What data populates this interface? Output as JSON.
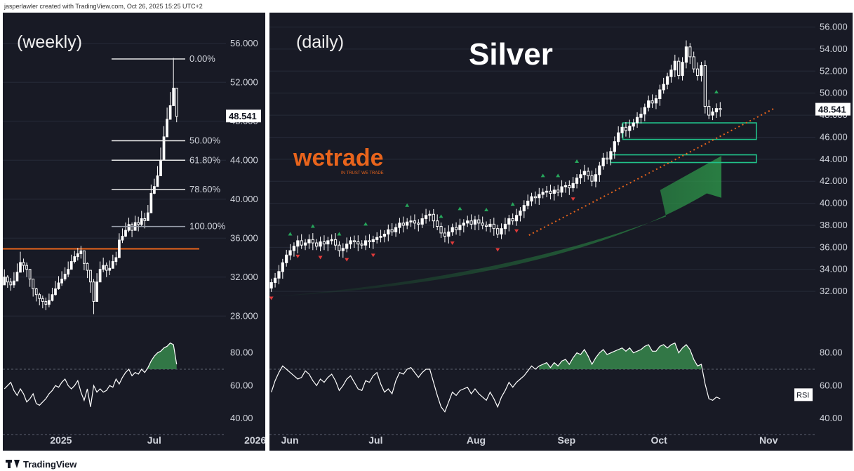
{
  "header": {
    "credit": "jasperlawler created with TradingView.com, Oct 26, 2025 15:25 UTC+2"
  },
  "footer": {
    "brand": "TradingView",
    "logo_icon": "tradingview-logo-icon"
  },
  "colors": {
    "background": "#181a25",
    "text": "#d1d4dc",
    "candle": "#ffffff",
    "support_line": "#e8641c",
    "trend_line": "#e8641c",
    "zone": "#21c28a",
    "rsi_fill": "#3a8f4f",
    "up_marker": "#26a65b",
    "down_marker": "#e03a3a",
    "arrow": "#1f6f35"
  },
  "chart_data": [
    {
      "type": "candlestick",
      "label": "(weekly)",
      "ylim": [
        26,
        58
      ],
      "y_ticks": [
        28,
        32,
        36,
        40,
        44,
        48,
        52,
        56
      ],
      "y_tick_labels": [
        "28.000",
        "32.000",
        "36.000",
        "40.000",
        "44.000",
        "48.000",
        "52.000",
        "56.000"
      ],
      "x_labels": [
        {
          "label": "2025",
          "pos": 0.18
        },
        {
          "label": "Jul",
          "pos": 0.55
        },
        {
          "label": "2026",
          "pos": 0.92
        }
      ],
      "close_series": [
        32.0,
        31.5,
        31.2,
        31.6,
        32.5,
        33.5,
        33.2,
        32.8,
        31.8,
        30.8,
        30.2,
        29.8,
        29.5,
        29.2,
        29.6,
        30.2,
        30.8,
        31.4,
        31.8,
        32.3,
        32.8,
        33.6,
        34.1,
        34.4,
        34.7,
        33.4,
        32.7,
        31.5,
        29.5,
        31.5,
        32.8,
        33.2,
        32.7,
        32.9,
        33.6,
        34.0,
        35.8,
        36.2,
        36.8,
        37.4,
        36.8,
        37.6,
        37.4,
        38.0,
        37.8,
        38.6,
        40.6,
        41.3,
        42.4,
        44.0,
        46.4,
        48.2,
        49.6,
        51.4,
        48.5
      ],
      "high_series": [
        32.8,
        32.2,
        31.9,
        32.5,
        33.4,
        34.6,
        33.9,
        33.5,
        32.5,
        31.5,
        30.9,
        30.4,
        30.1,
        29.9,
        30.3,
        30.9,
        31.6,
        32.1,
        32.6,
        33.0,
        33.6,
        34.3,
        34.7,
        35.0,
        35.2,
        34.4,
        33.5,
        32.4,
        31.8,
        32.4,
        33.6,
        34.0,
        33.5,
        33.7,
        34.3,
        34.6,
        36.5,
        37.0,
        37.6,
        38.1,
        37.6,
        38.3,
        38.2,
        38.8,
        38.6,
        39.4,
        41.5,
        42.1,
        43.4,
        45.3,
        47.5,
        49.4,
        51.0,
        54.5,
        50.2
      ],
      "low_series": [
        31.2,
        30.9,
        30.6,
        30.9,
        31.8,
        32.7,
        32.5,
        32.0,
        31.0,
        30.0,
        29.5,
        29.1,
        28.8,
        28.6,
        28.9,
        29.5,
        30.1,
        30.7,
        31.1,
        31.6,
        32.0,
        32.9,
        33.4,
        33.7,
        33.9,
        32.7,
        31.9,
        30.4,
        28.2,
        30.4,
        32.0,
        32.5,
        32.0,
        32.2,
        32.9,
        33.2,
        34.9,
        35.5,
        36.1,
        36.6,
        36.1,
        36.8,
        36.7,
        37.2,
        37.0,
        37.8,
        39.8,
        40.5,
        41.4,
        42.9,
        45.4,
        47.2,
        48.6,
        49.8,
        47.9
      ],
      "open_first": 31.2,
      "price_label": "48.541",
      "support_level": 34.9,
      "fibonacci": [
        {
          "label": "0.00%",
          "value": 54.4
        },
        {
          "label": "50.00%",
          "value": 46.0
        },
        {
          "label": "61.80%",
          "value": 44.0
        },
        {
          "label": "78.60%",
          "value": 41.0
        },
        {
          "label": "100.00%",
          "value": 37.2
        }
      ],
      "rsi": {
        "ylim": [
          34,
          88
        ],
        "ticks": [
          40,
          60,
          80
        ],
        "tick_labels": [
          "40.00",
          "60.00",
          "80.00"
        ],
        "levels": [
          70,
          30
        ],
        "values": [
          58,
          60,
          62,
          57,
          54,
          58,
          55,
          50,
          52,
          55,
          49,
          48,
          50,
          52,
          55,
          57,
          60,
          59,
          62,
          64,
          60,
          58,
          60,
          63,
          56,
          51,
          58,
          47,
          60,
          56,
          58,
          56,
          57,
          60,
          59,
          64,
          61,
          65,
          68,
          70,
          66,
          68,
          67,
          70,
          68,
          71,
          75,
          78,
          80,
          81,
          83,
          84,
          86,
          85,
          73
        ]
      }
    },
    {
      "type": "candlestick",
      "label": "(daily)",
      "title": "Silver",
      "ylim": [
        28.5,
        56.8
      ],
      "y_ticks": [
        32,
        34,
        36,
        38,
        40,
        42,
        44,
        46,
        48,
        50,
        52,
        54,
        56
      ],
      "y_tick_labels": [
        "32.000",
        "34.000",
        "36.000",
        "38.000",
        "40.000",
        "42.000",
        "44.000",
        "46.000",
        "48.000",
        "50.000",
        "52.000",
        "54.000",
        "56.000"
      ],
      "x_labels": [
        {
          "label": "Jun",
          "pos": 0.02
        },
        {
          "label": "Jul",
          "pos": 0.17
        },
        {
          "label": "Aug",
          "pos": 0.338
        },
        {
          "label": "Sep",
          "pos": 0.494
        },
        {
          "label": "Oct",
          "pos": 0.654
        },
        {
          "label": "Nov",
          "pos": 0.84
        }
      ],
      "close_series": [
        32.8,
        33.2,
        33.8,
        34.6,
        35.3,
        35.7,
        36.1,
        36.6,
        36.2,
        36.4,
        36.7,
        36.4,
        36.1,
        36.5,
        36.3,
        36.6,
        36.7,
        36.2,
        35.7,
        35.9,
        36.3,
        36.6,
        36.5,
        36.3,
        36.2,
        36.6,
        36.5,
        36.7,
        36.9,
        37.0,
        37.2,
        37.6,
        37.4,
        37.8,
        38.2,
        38.0,
        38.3,
        38.4,
        38.2,
        38.1,
        38.6,
        38.9,
        39.0,
        38.4,
        37.9,
        37.3,
        37.0,
        37.4,
        37.8,
        37.6,
        38.0,
        38.2,
        38.4,
        38.1,
        38.5,
        38.2,
        38.0,
        37.9,
        38.1,
        37.7,
        37.2,
        37.7,
        38.1,
        38.6,
        38.4,
        38.9,
        39.3,
        39.8,
        40.2,
        40.6,
        40.5,
        40.8,
        41.0,
        41.1,
        40.9,
        41.2,
        41.0,
        41.5,
        41.6,
        41.4,
        41.8,
        42.3,
        42.6,
        42.9,
        42.5,
        42.0,
        42.6,
        43.4,
        44.1,
        44.0,
        44.7,
        45.6,
        46.4,
        46.9,
        46.6,
        47.0,
        47.3,
        47.8,
        48.1,
        48.7,
        49.3,
        49.1,
        49.5,
        50.3,
        50.8,
        51.5,
        52.1,
        52.9,
        51.6,
        52.8,
        54.2,
        53.3,
        52.2,
        51.6,
        52.5,
        48.8,
        48.0,
        48.3,
        48.6,
        48.5
      ],
      "open_first": 32.3,
      "price_label": "48.541",
      "zones": [
        {
          "from": 45.8,
          "to": 47.3
        },
        {
          "from": 43.7,
          "to": 44.4
        }
      ],
      "trend_line": {
        "from": [
          0.445,
          37.1
        ],
        "to": [
          0.865,
          48.6
        ]
      },
      "up_markers": [
        5,
        11,
        18,
        25,
        36,
        45,
        50,
        57,
        64,
        72,
        76,
        81,
        118
      ],
      "down_markers": [
        0,
        7,
        13,
        20,
        27,
        48,
        60,
        65,
        80
      ],
      "watermark": "wetrade",
      "watermark_tagline": "IN TRUST WE TRADE",
      "rsi": {
        "label": "RSI",
        "ylim": [
          34,
          88
        ],
        "ticks": [
          40,
          60,
          80
        ],
        "tick_labels": [
          "40.00",
          "60.00",
          "80.00"
        ],
        "levels": [
          70,
          30
        ],
        "values": [
          56,
          63,
          68,
          72,
          70,
          68,
          66,
          64,
          65,
          69,
          67,
          63,
          60,
          64,
          62,
          65,
          67,
          63,
          57,
          60,
          64,
          66,
          62,
          58,
          57,
          63,
          62,
          66,
          68,
          61,
          56,
          58,
          55,
          63,
          68,
          67,
          70,
          71,
          68,
          65,
          68,
          70,
          70,
          62,
          54,
          47,
          44,
          50,
          56,
          54,
          57,
          58,
          59,
          55,
          58,
          55,
          53,
          51,
          56,
          52,
          47,
          53,
          57,
          62,
          59,
          62,
          64,
          66,
          69,
          72,
          70,
          72,
          73,
          74,
          71,
          74,
          72,
          75,
          76,
          73,
          77,
          80,
          79,
          82,
          78,
          73,
          77,
          80,
          82,
          79,
          80,
          81,
          82,
          83,
          81,
          83,
          80,
          81,
          82,
          84,
          85,
          81,
          81,
          84,
          85,
          83,
          85,
          86,
          80,
          83,
          85,
          82,
          76,
          72,
          73,
          61,
          52,
          51,
          53,
          52
        ]
      }
    }
  ]
}
